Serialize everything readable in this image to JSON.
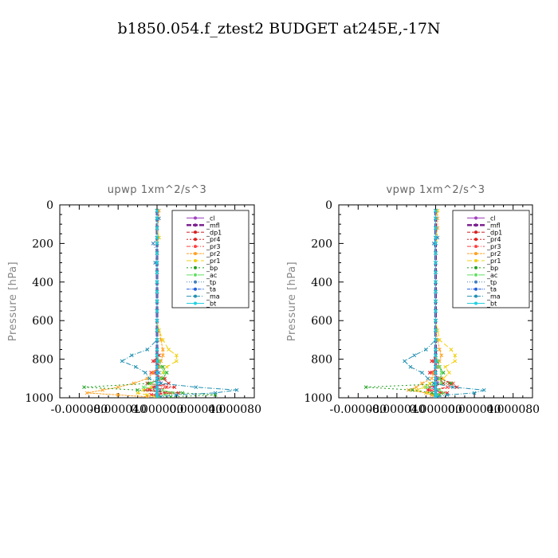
{
  "figure": {
    "title": "b1850.054.f_ztest2  BUDGET at245E,-17N"
  },
  "chart_data": [
    {
      "type": "line",
      "title": "upwp   1xm^2/s^3",
      "ylabel": "Pressure [hPa]",
      "xlim": [
        -0.0001,
        0.0001
      ],
      "ylim": [
        1000,
        0
      ],
      "y_inverted": true,
      "xticks": [
        -8e-05,
        -4e-05,
        0.0,
        4e-05,
        8e-05
      ],
      "xtick_labels": [
        "-0.000080",
        "-0.000040",
        "0.000000",
        "0.000040",
        "0.000080"
      ],
      "yticks": [
        0,
        200,
        400,
        600,
        800,
        1000
      ],
      "ytick_labels": [
        "0",
        "200",
        "400",
        "600",
        "800",
        "1000"
      ],
      "grid": false,
      "legend_position": "top-right",
      "y": [
        30,
        70,
        120,
        170,
        200,
        250,
        300,
        350,
        400,
        450,
        500,
        550,
        600,
        650,
        700,
        750,
        780,
        810,
        840,
        870,
        900,
        925,
        945,
        960,
        975,
        985,
        995
      ],
      "series": [
        {
          "name": "_cl",
          "color": "#a040c0",
          "values": [
            0,
            0,
            0,
            0,
            0,
            0,
            0,
            0,
            0,
            0,
            0,
            0,
            0,
            0,
            0,
            0,
            0,
            2e-06,
            0,
            -2e-06,
            2e-06,
            4e-06,
            -2e-06,
            3e-06,
            0,
            2e-06,
            0
          ]
        },
        {
          "name": "_mfl",
          "color": "#7a1f8e",
          "values": [
            0,
            0,
            0,
            0,
            0,
            0,
            0,
            0,
            0,
            0,
            0,
            0,
            0,
            0,
            0,
            0,
            0,
            0,
            0,
            0,
            0,
            0,
            0,
            0,
            0,
            0,
            0
          ]
        },
        {
          "name": "_dp1",
          "color": "#d42020",
          "values": [
            0,
            0,
            0,
            0,
            0,
            0,
            0,
            0,
            0,
            0,
            0,
            0,
            0,
            0,
            0,
            0,
            0,
            -2e-06,
            4e-06,
            -4e-06,
            6e-06,
            1.2e-05,
            -4e-06,
            -1.2e-05,
            8e-06,
            -6e-06,
            2e-06
          ]
        },
        {
          "name": "_pr4",
          "color": "#e02020",
          "values": [
            0,
            0,
            0,
            0,
            0,
            0,
            0,
            0,
            0,
            0,
            0,
            0,
            0,
            0,
            0,
            0,
            2e-06,
            -4e-06,
            4e-06,
            -6e-06,
            8e-06,
            -1e-05,
            1.8e-05,
            -8e-06,
            2.2e-05,
            -6e-06,
            4e-06
          ]
        },
        {
          "name": "_pr3",
          "color": "#ff4040",
          "values": [
            0,
            0,
            0,
            0,
            0,
            0,
            0,
            0,
            0,
            0,
            0,
            0,
            0,
            0,
            0,
            0,
            0,
            -2e-06,
            4e-06,
            -6e-06,
            6e-06,
            -8e-06,
            1e-05,
            -1.2e-05,
            1.4e-05,
            -6e-06,
            4e-06
          ]
        },
        {
          "name": "_pr2",
          "color": "#ffa020",
          "values": [
            2e-06,
            2e-06,
            0,
            2e-06,
            0,
            0,
            0,
            0,
            0,
            0,
            0,
            0,
            0,
            2e-06,
            4e-06,
            6e-06,
            6e-06,
            4e-06,
            2e-06,
            -4e-06,
            -1e-05,
            -2.4e-05,
            -4e-05,
            -5.6e-05,
            -7.2e-05,
            -4e-05,
            -1e-05
          ]
        },
        {
          "name": "_pr1",
          "color": "#f0d010",
          "values": [
            0,
            0,
            0,
            2e-06,
            0,
            0,
            0,
            0,
            0,
            0,
            0,
            0,
            0,
            2e-06,
            6e-06,
            1.2e-05,
            2e-05,
            2e-05,
            1e-05,
            6e-06,
            4e-06,
            0,
            -6e-06,
            -1.4e-05,
            -2e-05,
            -1e-05,
            -2e-06
          ]
        },
        {
          "name": "_bp",
          "color": "#20a020",
          "values": [
            0,
            0,
            0,
            0,
            0,
            0,
            0,
            0,
            0,
            0,
            0,
            0,
            0,
            0,
            0,
            0,
            0,
            2e-06,
            6e-06,
            1e-05,
            6e-06,
            -8e-06,
            -7.5e-05,
            -2e-05,
            2.6e-05,
            6e-05,
            1.4e-05
          ]
        },
        {
          "name": "_ac",
          "color": "#60e060",
          "values": [
            0,
            0,
            0,
            0,
            0,
            0,
            0,
            0,
            0,
            0,
            0,
            0,
            0,
            0,
            0,
            0,
            0,
            2e-06,
            4e-06,
            8e-06,
            4e-06,
            -6e-06,
            -1.4e-05,
            6e-06,
            1.6e-05,
            8e-06,
            2e-06
          ]
        },
        {
          "name": "_tp",
          "color": "#4080c0",
          "values": [
            0,
            2e-06,
            0,
            0,
            -4e-06,
            0,
            -2e-06,
            0,
            0,
            0,
            0,
            0,
            0,
            0,
            0,
            0,
            0,
            0,
            0,
            2e-06,
            0,
            0,
            0,
            0,
            0,
            0,
            0
          ]
        },
        {
          "name": "_ta",
          "color": "#2060e0",
          "values": [
            0,
            0,
            0,
            0,
            0,
            0,
            0,
            0,
            0,
            0,
            0,
            0,
            0,
            0,
            0,
            0,
            0,
            0,
            0,
            0,
            0,
            0,
            0,
            0,
            0,
            0,
            0
          ]
        },
        {
          "name": "_ma",
          "color": "#2090b0",
          "values": [
            0,
            0,
            0,
            0,
            0,
            0,
            0,
            0,
            0,
            0,
            0,
            0,
            0,
            0,
            0,
            -1e-05,
            -2.6e-05,
            -3.6e-05,
            -2.2e-05,
            -1.2e-05,
            -8e-06,
            4e-06,
            4e-05,
            8.2e-05,
            6e-05,
            2e-05,
            4e-06
          ]
        },
        {
          "name": "_bt",
          "color": "#20d0e0",
          "values": [
            0,
            0,
            0,
            0,
            0,
            0,
            0,
            0,
            0,
            0,
            0,
            0,
            0,
            0,
            0,
            0,
            0,
            0,
            0,
            0,
            0,
            0,
            0,
            0,
            0,
            0,
            0
          ]
        }
      ]
    },
    {
      "type": "line",
      "title": "vpwp   1xm^2/s^3",
      "ylabel": "Pressure [hPa]",
      "xlim": [
        -0.0001,
        0.0001
      ],
      "ylim": [
        1000,
        0
      ],
      "y_inverted": true,
      "xticks": [
        -8e-05,
        -4e-05,
        0.0,
        4e-05,
        8e-05
      ],
      "xtick_labels": [
        "-0.000080",
        "-0.000040",
        "0.000000",
        "0.000040",
        "0.000080"
      ],
      "yticks": [
        0,
        200,
        400,
        600,
        800,
        1000
      ],
      "ytick_labels": [
        "0",
        "200",
        "400",
        "600",
        "800",
        "1000"
      ],
      "grid": false,
      "legend_position": "top-right",
      "y": [
        30,
        70,
        120,
        170,
        200,
        250,
        300,
        350,
        400,
        450,
        500,
        550,
        600,
        650,
        700,
        750,
        780,
        810,
        840,
        870,
        900,
        925,
        945,
        960,
        975,
        985,
        995
      ],
      "series": [
        {
          "name": "_cl",
          "color": "#a040c0",
          "values": [
            0,
            0,
            0,
            0,
            0,
            0,
            0,
            0,
            0,
            0,
            0,
            0,
            0,
            0,
            0,
            0,
            0,
            2e-06,
            0,
            -2e-06,
            2e-06,
            2e-06,
            -2e-06,
            2e-06,
            0,
            0,
            0
          ]
        },
        {
          "name": "_mfl",
          "color": "#7a1f8e",
          "values": [
            0,
            0,
            0,
            0,
            0,
            0,
            0,
            0,
            0,
            0,
            0,
            0,
            0,
            0,
            0,
            0,
            0,
            0,
            0,
            0,
            0,
            0,
            0,
            0,
            0,
            0,
            0
          ]
        },
        {
          "name": "_dp1",
          "color": "#d42020",
          "values": [
            0,
            0,
            0,
            0,
            0,
            0,
            0,
            0,
            0,
            0,
            0,
            0,
            0,
            0,
            0,
            0,
            0,
            -2e-06,
            2e-06,
            -4e-06,
            4e-06,
            8e-06,
            -6e-06,
            -8e-06,
            6e-06,
            -2e-06,
            0
          ]
        },
        {
          "name": "_pr4",
          "color": "#e02020",
          "values": [
            0,
            0,
            0,
            0,
            0,
            0,
            0,
            0,
            0,
            0,
            0,
            0,
            0,
            0,
            0,
            0,
            0,
            -4e-06,
            4e-06,
            -6e-06,
            6e-06,
            1.4e-05,
            2.2e-05,
            -8e-06,
            1.2e-05,
            -4e-06,
            0
          ]
        },
        {
          "name": "_pr3",
          "color": "#ff4040",
          "values": [
            0,
            0,
            0,
            0,
            0,
            0,
            0,
            0,
            0,
            0,
            0,
            0,
            0,
            0,
            0,
            0,
            0,
            -2e-06,
            2e-06,
            -4e-06,
            4e-06,
            1.8e-05,
            1.2e-05,
            -6e-06,
            8e-06,
            -2e-06,
            0
          ]
        },
        {
          "name": "_pr2",
          "color": "#ffa020",
          "values": [
            2e-06,
            2e-06,
            2e-06,
            0,
            0,
            0,
            0,
            0,
            0,
            0,
            0,
            0,
            0,
            0,
            2e-06,
            4e-06,
            6e-06,
            4e-06,
            2e-06,
            -2e-06,
            -4e-06,
            -1.4e-05,
            -2e-05,
            -2.8e-05,
            -1e-05,
            -4e-06,
            0
          ]
        },
        {
          "name": "_pr1",
          "color": "#f0d010",
          "values": [
            2e-06,
            0,
            0,
            2e-06,
            0,
            0,
            0,
            0,
            0,
            0,
            0,
            0,
            0,
            2e-06,
            4e-06,
            1.6e-05,
            2e-05,
            2e-05,
            1e-05,
            1.4e-05,
            8e-06,
            -6e-06,
            -1.2e-05,
            -2e-05,
            -8e-06,
            -2e-06,
            0
          ]
        },
        {
          "name": "_bp",
          "color": "#20a020",
          "values": [
            0,
            0,
            0,
            0,
            0,
            0,
            0,
            0,
            0,
            0,
            0,
            0,
            0,
            0,
            0,
            0,
            0,
            2e-06,
            4e-06,
            8e-06,
            4e-06,
            1.6e-05,
            -7.2e-05,
            -2.4e-05,
            -4e-06,
            4e-06,
            0
          ]
        },
        {
          "name": "_ac",
          "color": "#60e060",
          "values": [
            0,
            0,
            0,
            0,
            0,
            0,
            0,
            0,
            0,
            0,
            0,
            0,
            0,
            0,
            0,
            0,
            0,
            2e-06,
            4e-06,
            6e-06,
            4e-06,
            6e-06,
            -1e-05,
            4e-06,
            8e-06,
            2e-06,
            0
          ]
        },
        {
          "name": "_tp",
          "color": "#4080c0",
          "values": [
            0,
            0,
            0,
            2e-06,
            -2e-06,
            0,
            0,
            0,
            0,
            0,
            0,
            0,
            0,
            0,
            0,
            0,
            0,
            0,
            0,
            0,
            0,
            0,
            0,
            0,
            0,
            0,
            0
          ]
        },
        {
          "name": "_ta",
          "color": "#2060e0",
          "values": [
            0,
            0,
            0,
            0,
            0,
            0,
            0,
            0,
            0,
            0,
            0,
            0,
            0,
            0,
            0,
            0,
            0,
            0,
            0,
            0,
            0,
            0,
            0,
            0,
            0,
            0,
            0
          ]
        },
        {
          "name": "_ma",
          "color": "#2090b0",
          "values": [
            0,
            0,
            0,
            0,
            0,
            0,
            0,
            0,
            0,
            0,
            0,
            0,
            0,
            0,
            0,
            -1e-05,
            -2.2e-05,
            -3.2e-05,
            -2.6e-05,
            -1.4e-05,
            -8e-06,
            -2e-06,
            1.8e-05,
            5e-05,
            4e-05,
            1.2e-05,
            2e-06
          ]
        },
        {
          "name": "_bt",
          "color": "#20d0e0",
          "values": [
            0,
            0,
            0,
            0,
            0,
            0,
            0,
            0,
            0,
            0,
            0,
            0,
            0,
            0,
            0,
            0,
            0,
            0,
            0,
            0,
            0,
            0,
            0,
            0,
            0,
            0,
            0
          ]
        }
      ]
    }
  ]
}
